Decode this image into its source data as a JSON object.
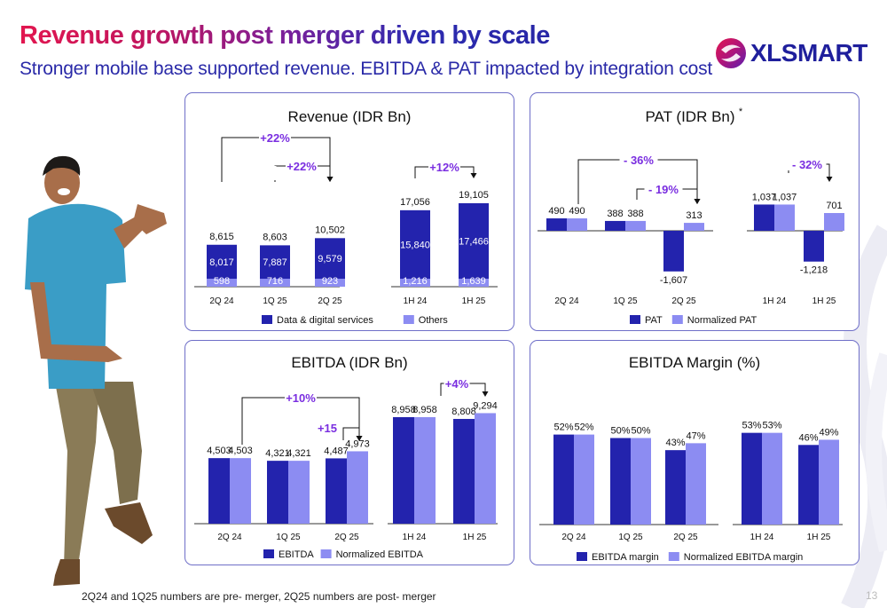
{
  "header": {
    "title": "Revenue growth post merger driven by scale",
    "subtitle": "Stronger mobile base supported revenue. EBITDA & PAT impacted by integration cost",
    "brand": "XLSMART"
  },
  "footnote": "2Q24 and 1Q25 numbers are pre- merger, 2Q25 numbers are post- merger",
  "page_number": "13",
  "colors": {
    "dark": "#2323ad",
    "light": "#8c8cf2",
    "accent": "#7a2ee0"
  },
  "chart_data": [
    {
      "id": "revenue",
      "type": "bar",
      "title": "Revenue (IDR Bn)",
      "stacked": true,
      "categories": [
        "2Q 24",
        "1Q 25",
        "2Q 25",
        "1H 24",
        "1H 25"
      ],
      "series": [
        {
          "name": "Data & digital services",
          "values": [
            8017,
            7887,
            9579,
            15840,
            17466
          ],
          "labels": [
            "8,017",
            "7,887",
            "9,579",
            "15,840",
            "17,466"
          ]
        },
        {
          "name": "Others",
          "values": [
            598,
            716,
            923,
            1216,
            1639
          ],
          "labels": [
            "598",
            "716",
            "923",
            "1,216",
            "1,639"
          ]
        }
      ],
      "totals": [
        8615,
        8603,
        10502,
        17056,
        19105
      ],
      "total_labels": [
        "8,615",
        "8,603",
        "10,502",
        "17,056",
        "19,105"
      ],
      "annotations": [
        "+22%",
        "+22%",
        "+12%"
      ]
    },
    {
      "id": "pat",
      "type": "bar",
      "title": "PAT (IDR Bn)",
      "title_note": "*",
      "categories": [
        "2Q 24",
        "1Q 25",
        "2Q 25",
        "1H 24",
        "1H 25"
      ],
      "series": [
        {
          "name": "PAT",
          "values": [
            490,
            388,
            -1607,
            1037,
            -1218
          ],
          "labels": [
            "490",
            "388",
            "-1,607",
            "1,037",
            "-1,218"
          ]
        },
        {
          "name": "Normalized PAT",
          "values": [
            490,
            388,
            313,
            1037,
            701
          ],
          "labels": [
            "490",
            "388",
            "313",
            "1,037",
            "701"
          ]
        }
      ],
      "annotations": [
        "- 36%",
        "- 19%",
        "- 32%"
      ]
    },
    {
      "id": "ebitda",
      "type": "bar",
      "title": "EBITDA (IDR Bn)",
      "categories": [
        "2Q 24",
        "1Q 25",
        "2Q 25",
        "1H 24",
        "1H 25"
      ],
      "series": [
        {
          "name": "EBITDA",
          "values": [
            4503,
            4321,
            4487,
            8958,
            8808
          ],
          "labels": [
            "4,503",
            "4,321",
            "4,487",
            "8,958",
            "8,808"
          ]
        },
        {
          "name": "Normalized EBITDA",
          "values": [
            4503,
            4321,
            4973,
            8958,
            9294
          ],
          "labels": [
            "4,503",
            "4,321",
            "4,973",
            "8,958",
            "9,294"
          ]
        }
      ],
      "annotations": [
        "+10%",
        "+15",
        "+4%"
      ]
    },
    {
      "id": "margin",
      "type": "bar",
      "title": "EBITDA Margin (%)",
      "categories": [
        "2Q 24",
        "1Q 25",
        "2Q 25",
        "1H 24",
        "1H 25"
      ],
      "series": [
        {
          "name": "EBITDA margin",
          "values": [
            52,
            50,
            43,
            53,
            46
          ],
          "labels": [
            "52%",
            "50%",
            "43%",
            "53%",
            "46%"
          ]
        },
        {
          "name": "Normalized EBITDA margin",
          "values": [
            52,
            50,
            47,
            53,
            49
          ],
          "labels": [
            "52%",
            "50%",
            "47%",
            "53%",
            "49%"
          ]
        }
      ]
    }
  ]
}
